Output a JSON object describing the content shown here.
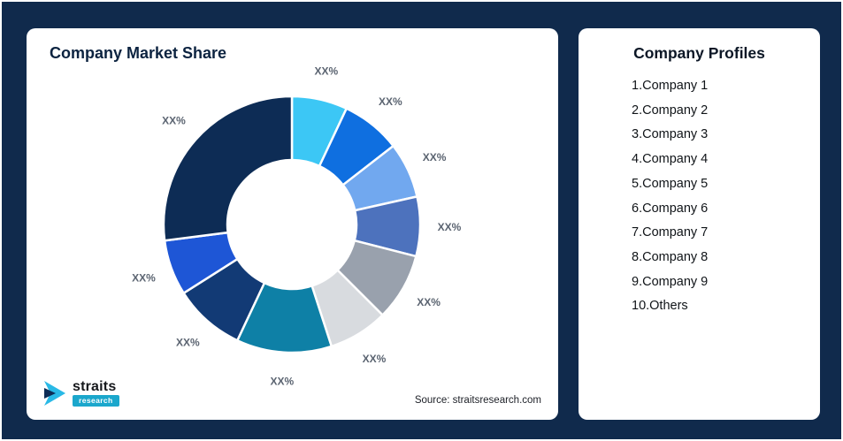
{
  "page": {
    "background_color": "#102a4c",
    "border_color": "#ffffff"
  },
  "left_card": {
    "title": "Company Market Share",
    "source": "Source: straitsresearch.com",
    "logo": {
      "name": "straits",
      "sub": "research",
      "accent_color": "#1ba7cc",
      "dark_color": "#0d2c55"
    }
  },
  "right_card": {
    "title": "Company Profiles",
    "items": [
      "1.Company 1",
      "2.Company 2",
      "3.Company 3",
      "4.Company 4",
      "5.Company 5",
      "6.Company 6",
      "7.Company 7",
      "8.Company 8",
      "9.Company 9",
      "10.Others"
    ]
  },
  "chart_data": {
    "type": "pie",
    "subtype": "donut",
    "title": "Company Market Share",
    "legend_position": "none",
    "start_angle_deg": 0,
    "direction": "clockwise",
    "categories": [
      "Company 1",
      "Company 2",
      "Company 3",
      "Company 4",
      "Company 5",
      "Company 6",
      "Company 7",
      "Company 8",
      "Company 9",
      "Others"
    ],
    "values": [
      7,
      7.5,
      7,
      7.5,
      8.5,
      7.5,
      12,
      9,
      7,
      27
    ],
    "display_labels": [
      "XX%",
      "XX%",
      "XX%",
      "XX%",
      "XX%",
      "XX%",
      "XX%",
      "XX%",
      "XX%",
      "XX%"
    ],
    "colors": [
      "#3cc7f5",
      "#0f6fe0",
      "#71a8ef",
      "#4d72bd",
      "#99a1ad",
      "#d8dbdf",
      "#0e80a6",
      "#123a75",
      "#1e56d6",
      "#0d2c55"
    ],
    "label_color": "#5b6471",
    "separator_color": "#ffffff"
  }
}
